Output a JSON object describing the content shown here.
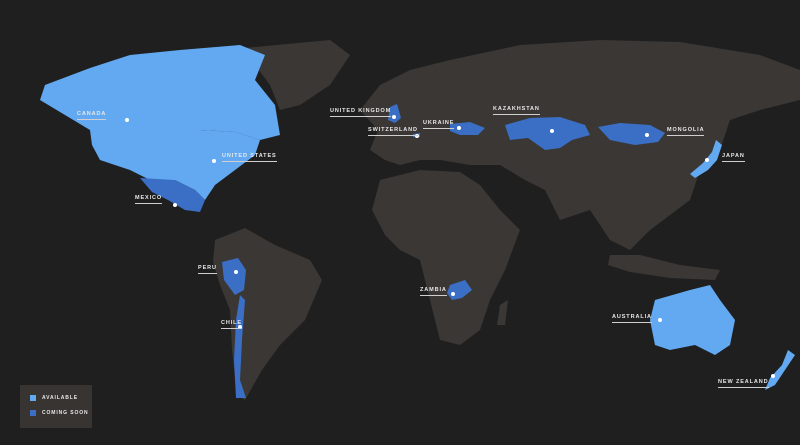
{
  "colors": {
    "background": "#1f1f1f",
    "land": "#3a3735",
    "available": "#62a9f2",
    "coming_soon": "#3b6fc6"
  },
  "legend": {
    "available": "AVAILABLE",
    "coming_soon": "COMING SOON"
  },
  "countries": {
    "canada": {
      "label": "CANADA",
      "status": "available"
    },
    "united_states": {
      "label": "UNITED STATES",
      "status": "available"
    },
    "mexico": {
      "label": "MEXICO",
      "status": "coming_soon"
    },
    "peru": {
      "label": "PERU",
      "status": "coming_soon"
    },
    "chile": {
      "label": "CHILE",
      "status": "coming_soon"
    },
    "united_kingdom": {
      "label": "UNITED KINGDOM",
      "status": "coming_soon"
    },
    "switzerland": {
      "label": "SWITZERLAND",
      "status": "coming_soon"
    },
    "ukraine": {
      "label": "UKRAINE",
      "status": "coming_soon"
    },
    "kazakhstan": {
      "label": "KAZAKHSTAN",
      "status": "coming_soon"
    },
    "mongolia": {
      "label": "MONGOLIA",
      "status": "coming_soon"
    },
    "japan": {
      "label": "JAPAN",
      "status": "available"
    },
    "zambia": {
      "label": "ZAMBIA",
      "status": "coming_soon"
    },
    "australia": {
      "label": "AUSTRALIA",
      "status": "available"
    },
    "new_zealand": {
      "label": "NEW ZEALAND",
      "status": "available"
    }
  }
}
